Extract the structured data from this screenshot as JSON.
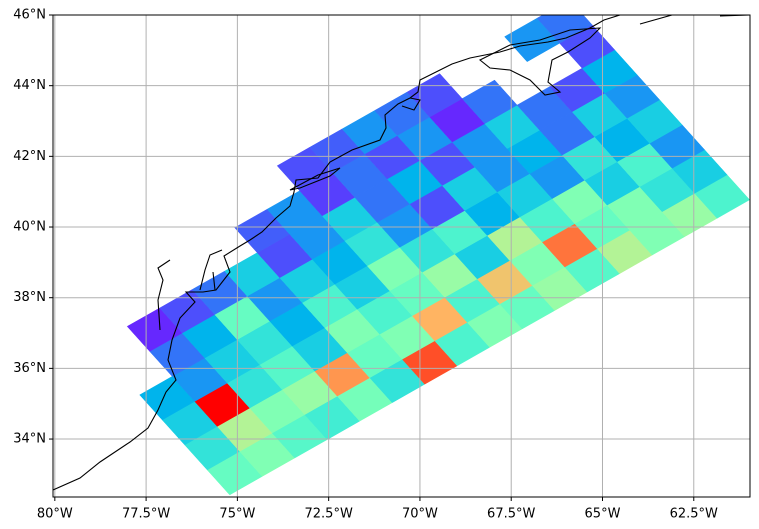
{
  "chart_data": {
    "type": "grid-map",
    "xlim": [
      -80.05,
      -60.96
    ],
    "ylim": [
      32.36,
      46.0
    ],
    "xticks": [
      {
        "value": -80,
        "label": "80°W"
      },
      {
        "value": -77.5,
        "label": "77.5°W"
      },
      {
        "value": -75,
        "label": "75°W"
      },
      {
        "value": -72.5,
        "label": "72.5°W"
      },
      {
        "value": -70,
        "label": "70°W"
      },
      {
        "value": -67.5,
        "label": "67.5°W"
      },
      {
        "value": -65,
        "label": "65°W"
      },
      {
        "value": -62.5,
        "label": "62.5°W"
      }
    ],
    "yticks": [
      {
        "value": 34,
        "label": "34°N"
      },
      {
        "value": 36,
        "label": "36°N"
      },
      {
        "value": 38,
        "label": "38°N"
      },
      {
        "value": 40,
        "label": "40°N"
      },
      {
        "value": 42,
        "label": "42°N"
      },
      {
        "value": 44,
        "label": "44°N"
      },
      {
        "value": 46,
        "label": "46°N"
      }
    ],
    "grid": true,
    "swath_origin": [
      -75.21,
      32.42
    ],
    "swath_along": [
      14.24,
      8.35
    ],
    "swath_cross": [
      -4.93,
      5.66
    ],
    "colormap": "rainbow",
    "cells": [
      [
        0.45,
        0.5,
        0.42,
        0.38,
        0.48,
        0.35,
        0.9,
        0.4,
        0.5,
        0.45,
        0.55,
        0.42,
        0.6,
        0.5,
        0.55,
        0.4
      ],
      [
        0.35,
        0.6,
        0.5,
        0.55,
        0.8,
        0.45,
        0.5,
        0.75,
        0.4,
        0.72,
        0.5,
        0.85,
        0.45,
        0.5,
        0.35,
        0.3
      ],
      [
        0.3,
        1.0,
        0.35,
        0.42,
        0.3,
        0.5,
        0.4,
        0.45,
        0.55,
        0.3,
        0.6,
        0.4,
        0.5,
        0.3,
        0.4,
        0.2
      ],
      [
        0.25,
        0.2,
        0.3,
        0.35,
        0.25,
        0.4,
        0.3,
        0.5,
        0.35,
        0.4,
        0.25,
        0.3,
        0.2,
        0.35,
        0.25,
        0.3
      ],
      [
        null,
        0.15,
        0.25,
        0.45,
        0.2,
        0.3,
        0.25,
        0.35,
        0.2,
        0.1,
        0.3,
        0.2,
        0.25,
        0.15,
        0.3,
        0.2
      ],
      [
        null,
        0.05,
        0.1,
        0.15,
        0.3,
        0.1,
        0.2,
        0.3,
        0.15,
        0.25,
        0.1,
        0.2,
        0.3,
        0.15,
        0.1,
        0.25
      ],
      [
        null,
        null,
        null,
        null,
        null,
        0.12,
        0.2,
        0.08,
        0.15,
        0.1,
        0.2,
        0.05,
        0.15,
        null,
        null,
        0.1
      ],
      [
        null,
        null,
        null,
        null,
        null,
        null,
        null,
        0.1,
        0.12,
        0.2,
        0.15,
        0.1,
        null,
        null,
        0.2,
        0.15
      ]
    ]
  }
}
